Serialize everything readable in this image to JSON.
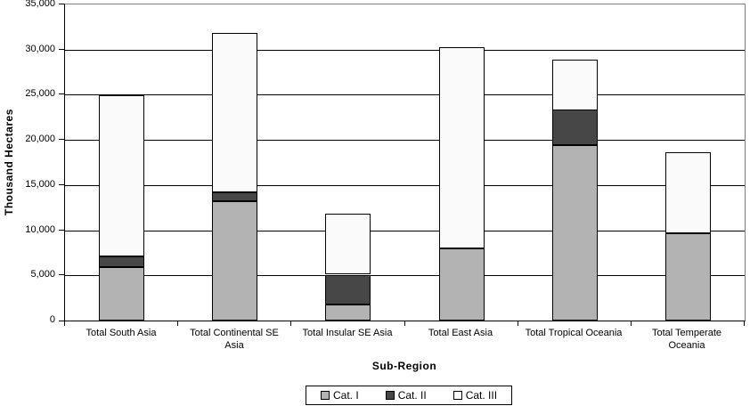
{
  "chart_data": {
    "type": "bar",
    "stacked": true,
    "title": "",
    "xlabel": "Sub-Region",
    "ylabel": "Thousand Hectares",
    "categories": [
      "Total South Asia",
      "Total Continental SE Asia",
      "Total Insular SE Asia",
      "Total East Asia",
      "Total Tropical Oceania",
      "Total Temperate Oceania"
    ],
    "series": [
      {
        "name": "Cat. I",
        "color": "#b3b3b3",
        "values": [
          5900,
          13200,
          1800,
          8000,
          19400,
          9700
        ]
      },
      {
        "name": "Cat. II",
        "color": "#474747",
        "values": [
          1200,
          1000,
          3300,
          0,
          3900,
          0
        ]
      },
      {
        "name": "Cat. III",
        "color": "#fafafa",
        "values": [
          17800,
          17600,
          6700,
          22300,
          5600,
          9000
        ]
      }
    ],
    "stack_totals": [
      24900,
      31800,
      11800,
      30300,
      28900,
      18700
    ],
    "ylim": [
      0,
      35000
    ],
    "ytick_step": 5000,
    "ytick_labels": [
      "0",
      "5,000",
      "10,000",
      "15,000",
      "20,000",
      "25,000",
      "30,000",
      "35,000"
    ],
    "grid": true,
    "legend_position": "bottom",
    "colors": {
      "axis": "#000000",
      "plot_border": "#808080",
      "gridline": "#000000",
      "background": "#ffffff"
    }
  }
}
